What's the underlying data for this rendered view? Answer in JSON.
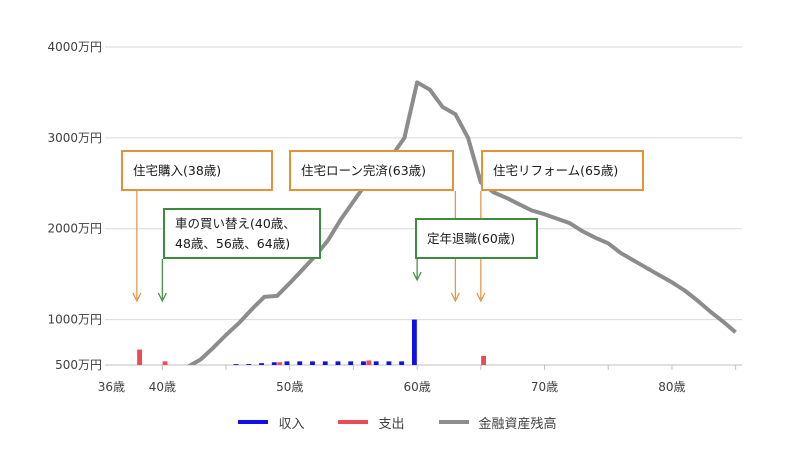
{
  "chart_data": {
    "type": "bar+line",
    "x": [
      36,
      37,
      38,
      39,
      40,
      41,
      42,
      43,
      44,
      45,
      46,
      47,
      48,
      49,
      50,
      51,
      52,
      53,
      54,
      55,
      56,
      57,
      58,
      59,
      60,
      61,
      62,
      63,
      64,
      65,
      66,
      67,
      68,
      69,
      70,
      71,
      72,
      73,
      74,
      75,
      76,
      77,
      78,
      79,
      80,
      81,
      82,
      83,
      84,
      85
    ],
    "series": [
      {
        "name": "収入",
        "type": "bar",
        "color": "#1010e8",
        "values": [
          450,
          450,
          460,
          460,
          470,
          480,
          480,
          490,
          490,
          500,
          510,
          510,
          520,
          530,
          540,
          540,
          540,
          540,
          540,
          540,
          540,
          540,
          540,
          540,
          1000,
          330,
          190,
          190,
          140,
          215,
          215,
          215,
          215,
          215,
          215,
          215,
          215,
          215,
          215,
          215,
          215,
          215,
          215,
          215,
          215,
          215,
          215,
          215,
          215,
          215
        ]
      },
      {
        "name": "支出",
        "type": "bar",
        "color": "#e84c55",
        "values": [
          280,
          370,
          670,
          300,
          540,
          400,
          390,
          360,
          370,
          360,
          350,
          380,
          380,
          530,
          370,
          370,
          380,
          410,
          380,
          380,
          550,
          360,
          420,
          390,
          340,
          430,
          390,
          270,
          470,
          600,
          290,
          340,
          280,
          280,
          320,
          300,
          300,
          320,
          300,
          300,
          330,
          300,
          310,
          310,
          310,
          310,
          310,
          320,
          320,
          330
        ]
      },
      {
        "name": "金融資産残高",
        "type": "line",
        "color": "#8c8c8c",
        "values": [
          330,
          440,
          230,
          330,
          280,
          340,
          480,
          560,
          690,
          830,
          960,
          1110,
          1250,
          1260,
          1400,
          1550,
          1700,
          1870,
          2100,
          2300,
          2500,
          2650,
          2800,
          3000,
          3610,
          3530,
          3340,
          3260,
          3000,
          2510,
          2400,
          2340,
          2270,
          2200,
          2160,
          2110,
          2060,
          1970,
          1900,
          1840,
          1730,
          1650,
          1570,
          1490,
          1410,
          1320,
          1210,
          1090,
          980,
          860
        ]
      }
    ],
    "ylim": [
      500,
      4000
    ],
    "yticks": [
      {
        "value": 500,
        "label": "500万円"
      },
      {
        "value": 1000,
        "label": "1000万円"
      },
      {
        "value": 2000,
        "label": "2000万円"
      },
      {
        "value": 3000,
        "label": "3000万円"
      },
      {
        "value": 4000,
        "label": "4000万円"
      }
    ],
    "xticks": [
      {
        "value": 36,
        "label": "36歳"
      },
      {
        "value": 40,
        "label": "40歳"
      },
      {
        "value": 50,
        "label": "50歳"
      },
      {
        "value": 60,
        "label": "60歳"
      },
      {
        "value": 70,
        "label": "70歳"
      },
      {
        "value": 80,
        "label": "80歳"
      }
    ],
    "annotations": [
      {
        "text": "住宅購入(38歳)",
        "age": 38,
        "color": "#e5913a"
      },
      {
        "text": "車の買い替え(40歳、\n48歳、56歳、64歳)",
        "age": 40,
        "color": "#3d8b3d"
      },
      {
        "text": "住宅ローン完済(63歳)",
        "age": 63,
        "color": "#e5913a"
      },
      {
        "text": "定年退職(60歳)",
        "age": 60,
        "color": "#3d8b3d"
      },
      {
        "text": "住宅リフォーム(65歳)",
        "age": 65,
        "color": "#e5913a"
      }
    ],
    "grid": true,
    "legend_position": "bottom"
  }
}
